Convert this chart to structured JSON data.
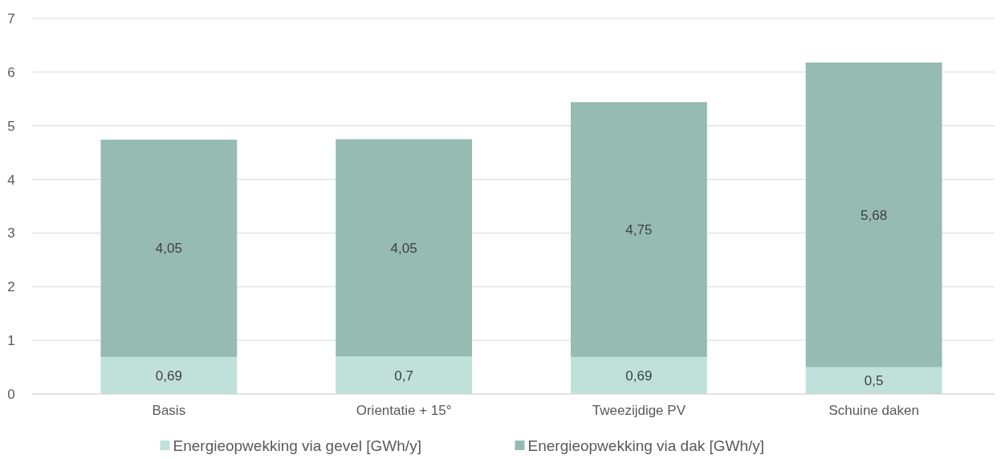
{
  "chart_data": {
    "type": "bar",
    "stacked": true,
    "categories": [
      "Basis",
      "Orientatie + 15°",
      "Tweezijdige PV",
      "Schuine daken"
    ],
    "series": [
      {
        "name": "Energieopwekking via gevel [GWh/y]",
        "color": "#bfe1da",
        "values": [
          0.69,
          0.7,
          0.69,
          0.5
        ],
        "value_labels": [
          "0,69",
          "0,7",
          "0,69",
          "0,5"
        ]
      },
      {
        "name": "Energieopwekking via dak [GWh/y]",
        "color": "#95bbb2",
        "values": [
          4.05,
          4.05,
          4.75,
          5.68
        ],
        "value_labels": [
          "4,05",
          "4,05",
          "4,75",
          "5,68"
        ]
      }
    ],
    "ylim": [
      0,
      7
    ],
    "yticks": [
      0,
      1,
      2,
      3,
      4,
      5,
      6,
      7
    ],
    "grid": "y",
    "legend": "bottom"
  }
}
